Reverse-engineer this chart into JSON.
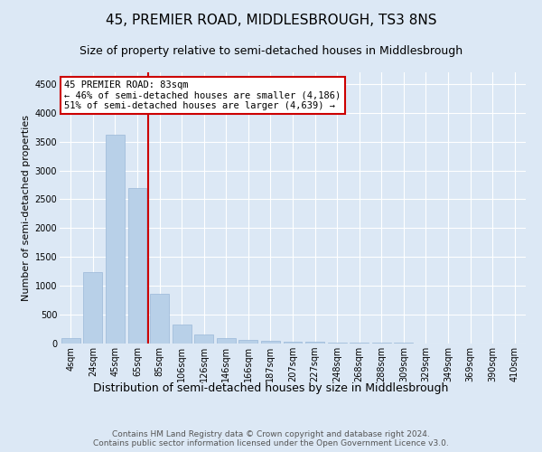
{
  "title": "45, PREMIER ROAD, MIDDLESBROUGH, TS3 8NS",
  "subtitle": "Size of property relative to semi-detached houses in Middlesbrough",
  "xlabel": "Distribution of semi-detached houses by size in Middlesbrough",
  "ylabel": "Number of semi-detached properties",
  "categories": [
    "4sqm",
    "24sqm",
    "45sqm",
    "65sqm",
    "85sqm",
    "106sqm",
    "126sqm",
    "146sqm",
    "166sqm",
    "187sqm",
    "207sqm",
    "227sqm",
    "248sqm",
    "268sqm",
    "288sqm",
    "309sqm",
    "329sqm",
    "349sqm",
    "369sqm",
    "390sqm",
    "410sqm"
  ],
  "values": [
    90,
    1240,
    3620,
    2700,
    860,
    330,
    155,
    90,
    65,
    50,
    35,
    25,
    20,
    15,
    10,
    8,
    5,
    3,
    2,
    1,
    0
  ],
  "bar_color": "#b8d0e8",
  "bar_edge_color": "#9ab8d8",
  "annotation_title": "45 PREMIER ROAD: 83sqm",
  "annotation_line1": "← 46% of semi-detached houses are smaller (4,186)",
  "annotation_line2": "51% of semi-detached houses are larger (4,639) →",
  "annotation_box_color": "#ffffff",
  "annotation_box_edge_color": "#cc0000",
  "property_line_color": "#cc0000",
  "ylim": [
    0,
    4700
  ],
  "yticks": [
    0,
    500,
    1000,
    1500,
    2000,
    2500,
    3000,
    3500,
    4000,
    4500
  ],
  "bg_color": "#dce8f5",
  "plot_bg_color": "#dce8f5",
  "footer": "Contains HM Land Registry data © Crown copyright and database right 2024.\nContains public sector information licensed under the Open Government Licence v3.0.",
  "title_fontsize": 11,
  "subtitle_fontsize": 9,
  "xlabel_fontsize": 9,
  "ylabel_fontsize": 8,
  "tick_fontsize": 7,
  "annot_fontsize": 7.5,
  "footer_fontsize": 6.5
}
